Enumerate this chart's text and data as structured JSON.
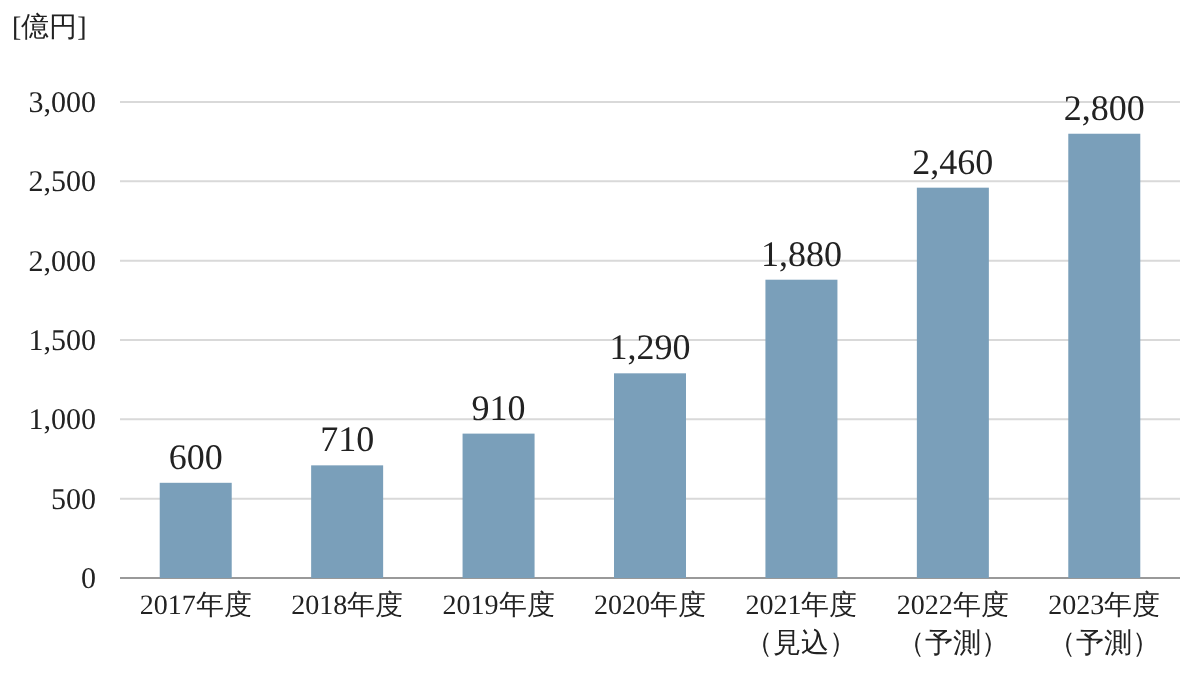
{
  "chart_data": {
    "type": "bar",
    "ylabel": "[億円]",
    "categories": [
      "2017年度",
      "2018年度",
      "2019年度",
      "2020年度",
      "2021年度（見込）",
      "2022年度（予測）",
      "2023年度（予測）"
    ],
    "values": [
      600,
      710,
      910,
      1290,
      1880,
      2460,
      2800
    ],
    "value_labels": [
      "600",
      "710",
      "910",
      "1,290",
      "1,880",
      "2,460",
      "2,800"
    ],
    "color": "#7a9fba",
    "ylim": [
      0,
      3000
    ],
    "yticks": [
      {
        "value": 0,
        "label": "0"
      },
      {
        "value": 500,
        "label": "500"
      },
      {
        "value": 1000,
        "label": "1,000"
      },
      {
        "value": 1500,
        "label": "1,500"
      },
      {
        "value": 2000,
        "label": "2,000"
      },
      {
        "value": 2500,
        "label": "2,500"
      },
      {
        "value": 3000,
        "label": "3,000"
      }
    ],
    "grid": "y"
  }
}
